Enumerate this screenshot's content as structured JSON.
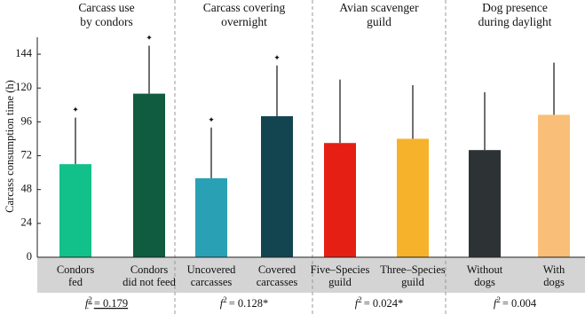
{
  "chart_data": {
    "type": "bar",
    "y_label": "Carcass consumption time (h)",
    "ylim": [
      0,
      156
    ],
    "yticks": [
      0,
      24,
      48,
      72,
      96,
      120,
      144
    ],
    "categories": [
      [
        "Condors",
        "fed"
      ],
      [
        "Condors",
        "did not feed"
      ],
      [
        "Uncovered",
        "carcasses"
      ],
      [
        "Covered",
        "carcasses"
      ],
      [
        "Five–Species",
        "guild"
      ],
      [
        "Three–Species",
        "guild"
      ],
      [
        "Without",
        "dogs"
      ],
      [
        "With",
        "dogs"
      ]
    ],
    "values": [
      66,
      116,
      56,
      100,
      81,
      84,
      76,
      101
    ],
    "errors": [
      33,
      34,
      36,
      36,
      45,
      38,
      41,
      37
    ],
    "colors": [
      "#12c08a",
      "#0f5c40",
      "#2aa0b5",
      "#124550",
      "#e51f13",
      "#f7b22b",
      "#2d3334",
      "#f9be78"
    ],
    "markers": [
      "✦",
      "✦",
      "✦",
      "✦",
      null,
      null,
      null,
      null
    ],
    "effect_symbol": "f",
    "effect_power": "2",
    "groups": [
      {
        "title": [
          "Carcass use",
          "by condors"
        ],
        "effect": "= 0.179"
      },
      {
        "title": [
          "Carcass covering",
          "overnight"
        ],
        "effect": "= 0.128*"
      },
      {
        "title": [
          "Avian scavenger",
          "guild"
        ],
        "effect": "= 0.024*"
      },
      {
        "title": [
          "Dog presence",
          "during daylight"
        ],
        "effect": "= 0.004"
      }
    ]
  }
}
